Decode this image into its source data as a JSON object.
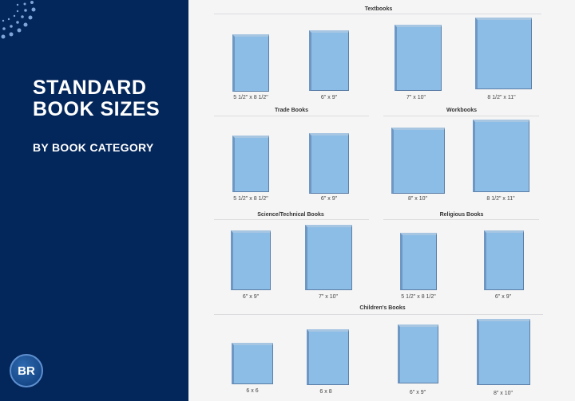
{
  "header": {
    "title_line1": "STANDARD",
    "title_line2": "BOOK SIZES",
    "subtitle": "BY BOOK CATEGORY",
    "logo": "BR"
  },
  "colors": {
    "panel": "#03265b",
    "book": "#8cbde7",
    "background": "#f5f5f6"
  },
  "sections": [
    {
      "title": "Textbooks",
      "sizes": [
        "5 1/2\" x 8 1/2\"",
        "6\" x 9\"",
        "7\" x 10\"",
        "8 1/2\" x 11\""
      ]
    },
    {
      "title": "Trade Books",
      "sizes": [
        "5 1/2\" x 8 1/2\"",
        "6\" x 9\""
      ]
    },
    {
      "title": "Workbooks",
      "sizes": [
        "8\" x 10\"",
        "8 1/2\" x 11\""
      ]
    },
    {
      "title": "Science/Technical Books",
      "sizes": [
        "6\" x 9\"",
        "7\" x 10\""
      ]
    },
    {
      "title": "Religious Books",
      "sizes": [
        "5 1/2\" x 8 1/2\"",
        "6\" x 9\""
      ]
    },
    {
      "title": "Children's Books",
      "sizes": [
        "6 x 6",
        "6 x 8",
        "6\" x 9\"",
        "8\" x 10\""
      ]
    }
  ]
}
